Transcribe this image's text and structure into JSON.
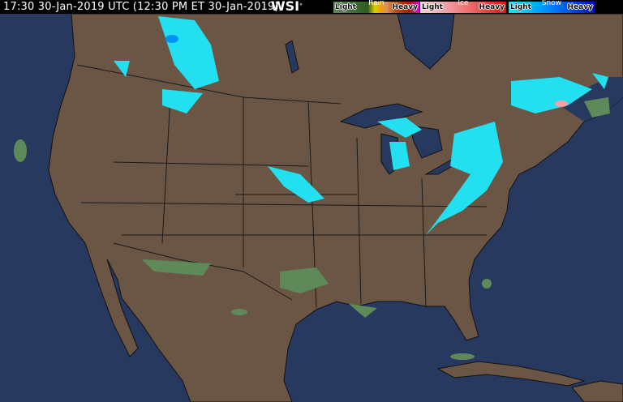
{
  "header": {
    "timestamp": "17:30 30-Jan-2019 UTC  (12:30 PM ET 30-Jan-2019)",
    "logo": "WSI",
    "logo_mark": "°"
  },
  "legend": [
    {
      "name": "Rain",
      "light": "Light",
      "heavy": "Heavy",
      "colors": [
        "#5e8a5a",
        "#3e6e34",
        "#2f5a22",
        "#d8d000",
        "#f0a000",
        "#d89060",
        "#c05010",
        "#a02000",
        "#e000e0"
      ]
    },
    {
      "name": "Ice",
      "light": "Light",
      "heavy": "Heavy",
      "colors": [
        "#f8d0d8",
        "#f0a0a8",
        "#f07070",
        "#e84848",
        "#e01010"
      ]
    },
    {
      "name": "Snow",
      "light": "Light",
      "heavy": "Heavy",
      "colors": [
        "#00e8f8",
        "#00b8f8",
        "#0080f8",
        "#0048e0",
        "#0010b0"
      ]
    }
  ],
  "colors": {
    "ocean": "#27395f",
    "land": "#6b5646",
    "borders": "#1a1a1a",
    "lakes": "#27395f"
  }
}
